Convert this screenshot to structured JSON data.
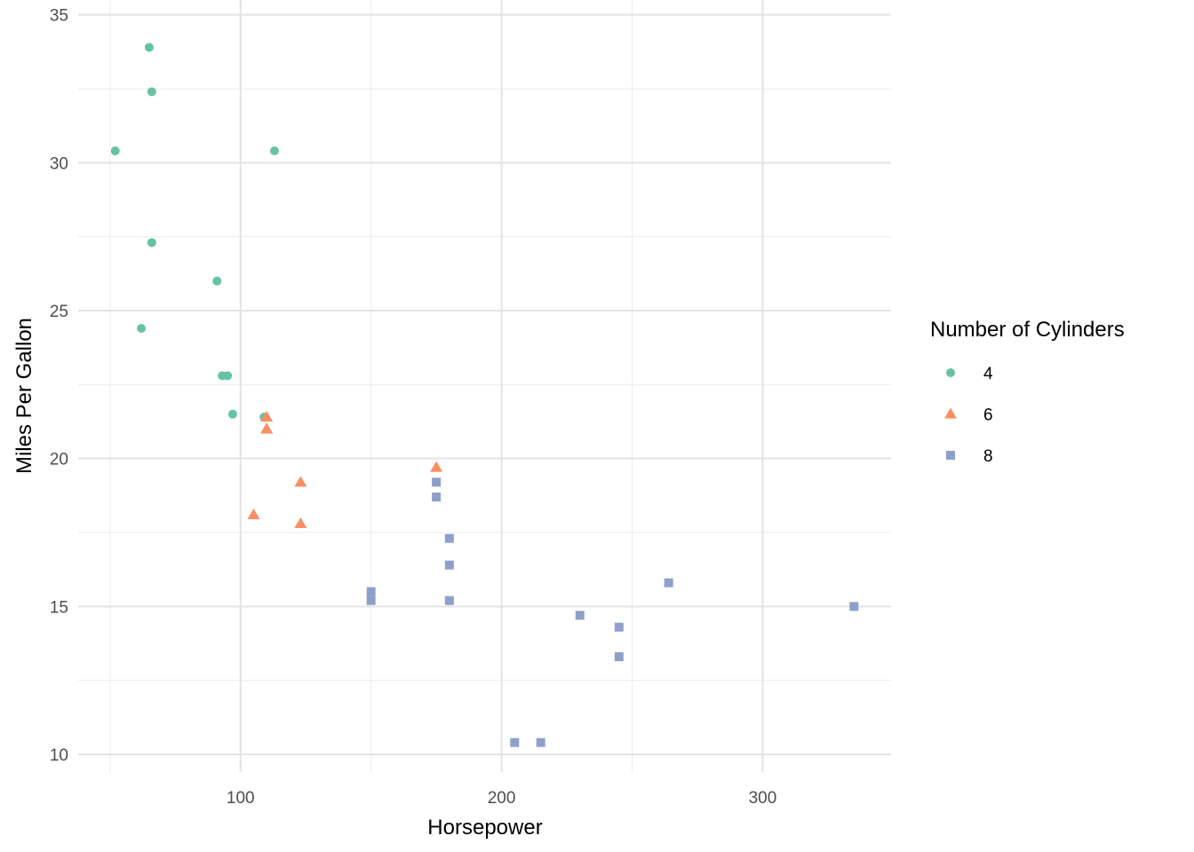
{
  "chart_data": {
    "type": "scatter",
    "title": "",
    "xlabel": "Horsepower",
    "ylabel": "Miles Per Gallon",
    "xlim": [
      37.8,
      349.2
    ],
    "ylim": [
      9.4,
      35.5
    ],
    "xticks": [
      100,
      200,
      300
    ],
    "xminor": [
      50,
      150,
      250
    ],
    "yticks": [
      10,
      15,
      20,
      25,
      30,
      35
    ],
    "yminor": [
      12.5,
      17.5,
      22.5,
      27.5,
      32.5
    ],
    "grid": true,
    "legend": {
      "title": "Number of Cylinders",
      "placement": "right",
      "entries": [
        "4",
        "6",
        "8"
      ]
    },
    "series": [
      {
        "name": "4",
        "shape": "circle",
        "color": "#66c2a5",
        "points": [
          [
            93,
            22.8
          ],
          [
            62,
            24.4
          ],
          [
            95,
            22.8
          ],
          [
            66,
            32.4
          ],
          [
            52,
            30.4
          ],
          [
            65,
            33.9
          ],
          [
            97,
            21.5
          ],
          [
            66,
            27.3
          ],
          [
            91,
            26.0
          ],
          [
            113,
            30.4
          ],
          [
            109,
            21.4
          ]
        ]
      },
      {
        "name": "6",
        "shape": "triangle",
        "color": "#fc8d62",
        "points": [
          [
            110,
            21.0
          ],
          [
            110,
            21.0
          ],
          [
            110,
            21.4
          ],
          [
            105,
            18.1
          ],
          [
            123,
            19.2
          ],
          [
            123,
            17.8
          ],
          [
            175,
            19.7
          ]
        ]
      },
      {
        "name": "8",
        "shape": "square",
        "color": "#8da0cb",
        "points": [
          [
            175,
            18.7
          ],
          [
            245,
            14.3
          ],
          [
            180,
            16.4
          ],
          [
            180,
            17.3
          ],
          [
            180,
            15.2
          ],
          [
            205,
            10.4
          ],
          [
            215,
            10.4
          ],
          [
            230,
            14.7
          ],
          [
            150,
            15.5
          ],
          [
            150,
            15.2
          ],
          [
            245,
            13.3
          ],
          [
            175,
            19.2
          ],
          [
            264,
            15.8
          ],
          [
            335,
            15.0
          ]
        ]
      }
    ]
  }
}
